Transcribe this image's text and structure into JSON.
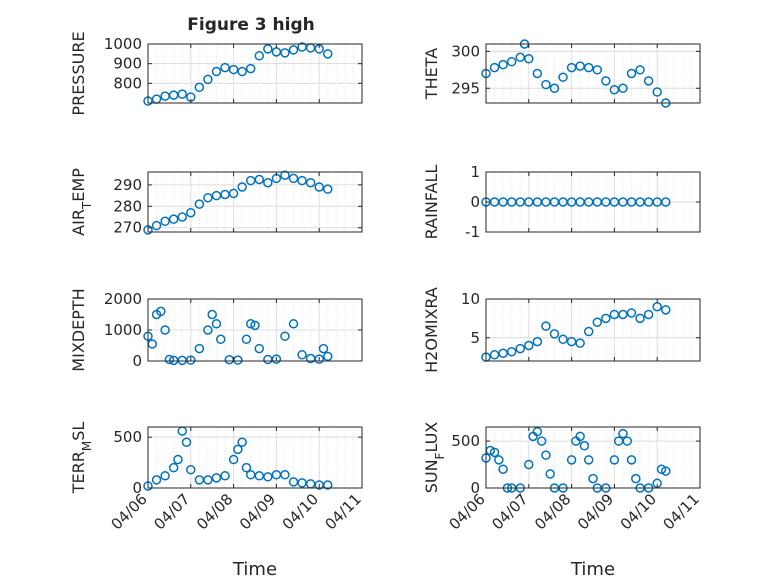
{
  "figure": {
    "title": "Figure 3 high"
  },
  "style": {
    "marker_color": "#0072BD",
    "axis_color": "#262626",
    "grid_color": "#dcdcdc"
  },
  "xaxis": {
    "label": "Time",
    "ticks": [
      "04/06",
      "04/07",
      "04/08",
      "04/09",
      "04/10",
      "04/11"
    ],
    "range": [
      6.0,
      11.0
    ]
  },
  "chart_data": [
    {
      "type": "scatter",
      "ylabel": "PRESSURE",
      "ylim": [
        700,
        1000
      ],
      "yticks": [
        800,
        900,
        1000
      ],
      "yticklabels": [
        "800",
        "900",
        "1000"
      ],
      "grid": true,
      "x": [
        6.0,
        6.2,
        6.4,
        6.6,
        6.8,
        7.0,
        7.2,
        7.4,
        7.6,
        7.8,
        8.0,
        8.2,
        8.4,
        8.6,
        8.8,
        9.0,
        9.2,
        9.4,
        9.6,
        9.8,
        10.0,
        10.2
      ],
      "y": [
        710,
        720,
        735,
        740,
        745,
        730,
        780,
        820,
        860,
        880,
        870,
        860,
        875,
        940,
        975,
        960,
        955,
        970,
        985,
        980,
        975,
        950
      ]
    },
    {
      "type": "scatter",
      "ylabel": "THETA",
      "ylim": [
        293,
        301
      ],
      "yticks": [
        295,
        300
      ],
      "yticklabels": [
        "295",
        "300"
      ],
      "grid": true,
      "x": [
        6.0,
        6.2,
        6.4,
        6.6,
        6.8,
        6.9,
        7.0,
        7.2,
        7.4,
        7.6,
        7.8,
        8.0,
        8.2,
        8.4,
        8.6,
        8.8,
        9.0,
        9.2,
        9.4,
        9.6,
        9.8,
        10.0,
        10.2
      ],
      "y": [
        297,
        297.8,
        298.2,
        298.6,
        299.2,
        301,
        299,
        297,
        295.5,
        295,
        296.5,
        297.8,
        298,
        297.8,
        297.5,
        296,
        294.8,
        295,
        297,
        297.5,
        296,
        294.5,
        293
      ]
    },
    {
      "type": "scatter",
      "ylabel": "AIR_TEMP",
      "ylim": [
        268,
        296
      ],
      "yticks": [
        270,
        280,
        290
      ],
      "yticklabels": [
        "270",
        "280",
        "290"
      ],
      "grid": true,
      "x": [
        6.0,
        6.2,
        6.4,
        6.6,
        6.8,
        7.0,
        7.2,
        7.4,
        7.6,
        7.8,
        8.0,
        8.2,
        8.4,
        8.6,
        8.8,
        9.0,
        9.2,
        9.4,
        9.6,
        9.8,
        10.0,
        10.2
      ],
      "y": [
        269,
        271,
        273,
        274,
        275,
        277,
        281,
        284,
        285,
        285.5,
        286,
        289,
        292,
        292.5,
        291,
        293,
        294.5,
        293,
        292,
        291,
        289,
        288
      ]
    },
    {
      "type": "scatter",
      "ylabel": "RAINFALL",
      "ylim": [
        -1,
        1
      ],
      "yticks": [
        -1,
        0,
        1
      ],
      "yticklabels": [
        "-1",
        "0",
        "1"
      ],
      "grid": true,
      "x": [
        6.0,
        6.2,
        6.4,
        6.6,
        6.8,
        7.0,
        7.2,
        7.4,
        7.6,
        7.8,
        8.0,
        8.2,
        8.4,
        8.6,
        8.8,
        9.0,
        9.2,
        9.4,
        9.6,
        9.8,
        10.0,
        10.2
      ],
      "y": [
        0,
        0,
        0,
        0,
        0,
        0,
        0,
        0,
        0,
        0,
        0,
        0,
        0,
        0,
        0,
        0,
        0,
        0,
        0,
        0,
        0,
        0
      ]
    },
    {
      "type": "scatter",
      "ylabel": "MIXDEPTH",
      "ylim": [
        0,
        2000
      ],
      "yticks": [
        0,
        1000,
        2000
      ],
      "yticklabels": [
        "0",
        "1000",
        "2000"
      ],
      "grid": true,
      "x": [
        6.0,
        6.1,
        6.2,
        6.3,
        6.4,
        6.5,
        6.6,
        6.8,
        7.0,
        7.2,
        7.4,
        7.5,
        7.6,
        7.7,
        7.9,
        8.1,
        8.3,
        8.4,
        8.5,
        8.6,
        8.8,
        9.0,
        9.2,
        9.4,
        9.6,
        9.8,
        10.0,
        10.1,
        10.2
      ],
      "y": [
        800,
        550,
        1500,
        1600,
        1000,
        50,
        20,
        20,
        30,
        400,
        1000,
        1500,
        1200,
        700,
        40,
        30,
        700,
        1200,
        1150,
        400,
        50,
        60,
        800,
        1200,
        200,
        80,
        60,
        400,
        150
      ]
    },
    {
      "type": "scatter",
      "ylabel": "H2OMIXRA",
      "ylim": [
        2,
        10
      ],
      "yticks": [
        5,
        10
      ],
      "yticklabels": [
        "5",
        "10"
      ],
      "grid": true,
      "x": [
        6.0,
        6.2,
        6.4,
        6.6,
        6.8,
        7.0,
        7.2,
        7.4,
        7.6,
        7.8,
        8.0,
        8.2,
        8.4,
        8.6,
        8.8,
        9.0,
        9.2,
        9.4,
        9.6,
        9.8,
        10.0,
        10.2
      ],
      "y": [
        2.5,
        2.8,
        3,
        3.2,
        3.6,
        4,
        4.5,
        6.5,
        5.5,
        4.8,
        4.5,
        4.3,
        5.8,
        7,
        7.5,
        8,
        8,
        8.2,
        7.5,
        8,
        9,
        8.6
      ]
    },
    {
      "type": "scatter",
      "ylabel": "TERR_MSL",
      "ylim": [
        0,
        600
      ],
      "yticks": [
        0,
        500
      ],
      "yticklabels": [
        "0",
        "500"
      ],
      "grid": true,
      "x": [
        6.0,
        6.2,
        6.4,
        6.6,
        6.7,
        6.8,
        6.9,
        7.0,
        7.2,
        7.4,
        7.6,
        7.8,
        8.0,
        8.1,
        8.2,
        8.3,
        8.4,
        8.6,
        8.8,
        9.0,
        9.2,
        9.4,
        9.6,
        9.8,
        10.0,
        10.2
      ],
      "y": [
        20,
        80,
        120,
        200,
        280,
        560,
        450,
        180,
        80,
        80,
        100,
        120,
        280,
        380,
        450,
        200,
        130,
        120,
        110,
        130,
        130,
        60,
        50,
        40,
        30,
        30
      ]
    },
    {
      "type": "scatter",
      "ylabel": "SUN_FLUX",
      "ylim": [
        0,
        650
      ],
      "yticks": [
        0,
        500
      ],
      "yticklabels": [
        "0",
        "500"
      ],
      "grid": true,
      "x": [
        6.0,
        6.1,
        6.2,
        6.3,
        6.4,
        6.5,
        6.6,
        6.8,
        7.0,
        7.1,
        7.2,
        7.3,
        7.4,
        7.5,
        7.6,
        7.8,
        8.0,
        8.1,
        8.2,
        8.3,
        8.4,
        8.5,
        8.6,
        8.8,
        9.0,
        9.1,
        9.2,
        9.3,
        9.4,
        9.5,
        9.6,
        9.8,
        10.0,
        10.1,
        10.2
      ],
      "y": [
        320,
        400,
        380,
        300,
        200,
        0,
        0,
        0,
        250,
        550,
        600,
        500,
        350,
        150,
        0,
        0,
        300,
        500,
        550,
        450,
        300,
        100,
        0,
        0,
        300,
        500,
        580,
        500,
        300,
        100,
        0,
        0,
        50,
        200,
        180
      ]
    }
  ]
}
